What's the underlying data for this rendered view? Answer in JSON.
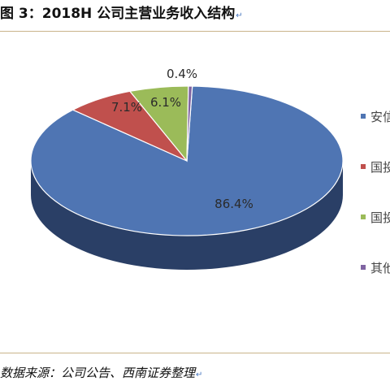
{
  "title": "图 3：2018H 公司主营业务收入结构",
  "source": "数据来源：公司公告、西南证券整理",
  "return_mark": "↵",
  "chart_data": {
    "type": "pie",
    "title": "",
    "slices": [
      {
        "label": "安信",
        "value": 86.4,
        "value_label": "86.4%",
        "color": "#4f75b3",
        "side_color": "#2a3f66"
      },
      {
        "label": "国投",
        "value": 7.1,
        "value_label": "7.1%",
        "color": "#c0504d",
        "side_color": "#7a2a28"
      },
      {
        "label": "国投",
        "value": 6.1,
        "value_label": "6.1%",
        "color": "#9bbb59",
        "side_color": "#5f7733"
      },
      {
        "label": "其他",
        "value": 0.4,
        "value_label": "0.4%",
        "color": "#8064a2",
        "side_color": "#4f3d66"
      }
    ],
    "legend_position": "right",
    "three_d": true
  }
}
